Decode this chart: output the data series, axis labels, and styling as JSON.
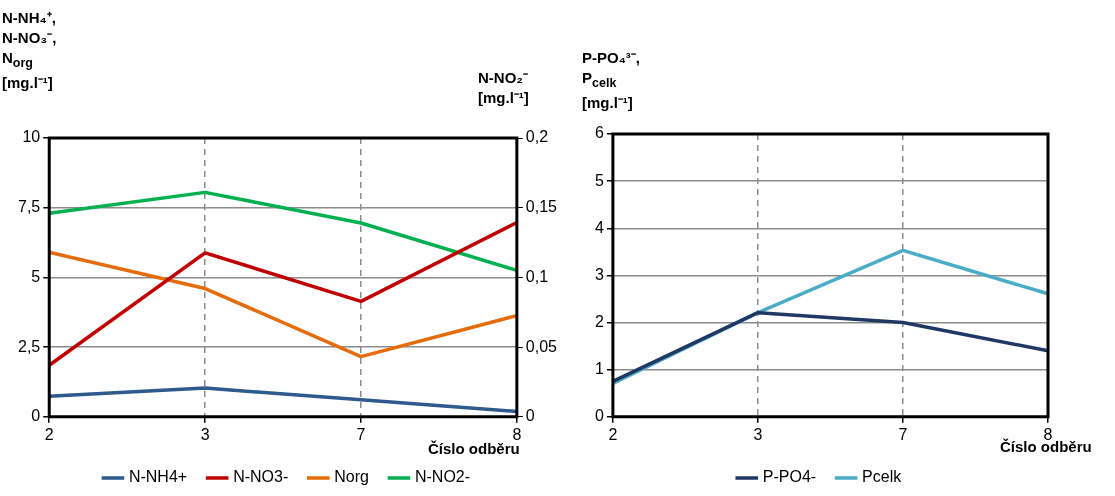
{
  "chart_data": [
    {
      "type": "line",
      "ylabel": "N-NH₄⁺,\nN-NO₃⁻,\nN$_{org}$\n[mg.l⁻¹]",
      "y2label": "N-NO₂⁻\n[mg.l⁻¹]",
      "xlabel": "Číslo odběru",
      "categories": [
        "2",
        "3",
        "7",
        "8"
      ],
      "series": [
        {
          "name": "N-NH4+",
          "color": "#2e5a8c",
          "values": [
            0.74,
            1.03,
            0.61,
            0.19
          ]
        },
        {
          "name": "N-NO3-",
          "color": "#c00000",
          "values": [
            1.85,
            5.88,
            4.14,
            6.97
          ]
        },
        {
          "name": "Norg",
          "color": "#e46c0a",
          "values": [
            5.9,
            4.6,
            2.16,
            3.63
          ]
        },
        {
          "name": "N-NO2-",
          "color": "#00b050",
          "values": [
            0.146,
            0.161,
            0.139,
            0.105
          ],
          "axis": "y2"
        }
      ],
      "ylim": [
        0,
        10
      ],
      "yticks": [
        0,
        {
          "value": 2.5,
          "label": "2,5"
        },
        5,
        {
          "value": 7.5,
          "label": "7,5"
        },
        10
      ],
      "y2lim": [
        0,
        0.2
      ],
      "y2ticks": [
        0,
        {
          "value": 0.05,
          "label": "0,05"
        },
        {
          "value": 0.1,
          "label": "0,1"
        },
        {
          "value": 0.15,
          "label": "0,15"
        },
        {
          "value": 0.2,
          "label": "0,2"
        }
      ],
      "grid": true,
      "legend": "bottom",
      "marker": "none",
      "line_style": "solid"
    },
    {
      "type": "line",
      "ylabel": "P-PO₄³⁻,\nP$_{celk}$\n[mg.l⁻¹]",
      "xlabel": "Číslo odběru",
      "categories": [
        "2",
        "3",
        "7",
        "8"
      ],
      "series": [
        {
          "name": "P-PO4-",
          "color": "#1f3864",
          "values": [
            0.75,
            2.21,
            2.0,
            1.4
          ]
        },
        {
          "name": "Pcelk",
          "color": "#4bacc6",
          "values": [
            0.71,
            2.21,
            3.53,
            2.61
          ]
        }
      ],
      "ylim": [
        0,
        6
      ],
      "yticks": [
        0,
        1,
        2,
        3,
        4,
        5,
        6
      ],
      "grid": true,
      "legend": "bottom",
      "marker": "none",
      "line_style": "solid"
    }
  ]
}
